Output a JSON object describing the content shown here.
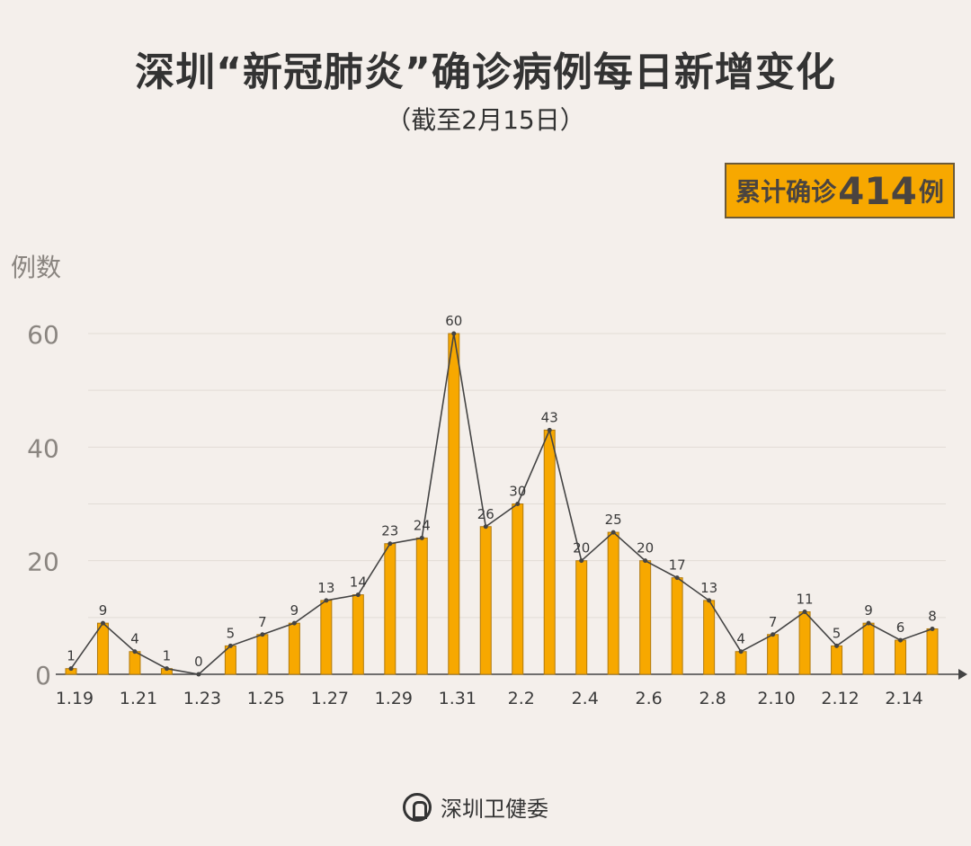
{
  "header": {
    "title": "深圳“新冠肺炎”确诊病例每日新增变化",
    "subtitle": "（截至2月15日）"
  },
  "total_badge": {
    "prefix": "累计确诊",
    "value": "414",
    "suffix": "例"
  },
  "footer": {
    "source": "深圳卫健委"
  },
  "colors": {
    "bar": "#f7a800",
    "bar_outline": "#b07a10",
    "line": "#444444",
    "grid": "#e2dcd6",
    "background": "#f4efeb"
  },
  "chart_data": {
    "type": "bar+line",
    "ylabel": "例数",
    "ylim": [
      0,
      60
    ],
    "yticks": [
      0,
      20,
      40,
      60
    ],
    "grid": true,
    "categories": [
      "1.19",
      "1.20",
      "1.21",
      "1.22",
      "1.23",
      "1.24",
      "1.25",
      "1.26",
      "1.27",
      "1.28",
      "1.29",
      "1.30",
      "1.31",
      "2.1",
      "2.2",
      "2.3",
      "2.4",
      "2.5",
      "2.6",
      "2.7",
      "2.8",
      "2.9",
      "2.10",
      "2.11",
      "2.12",
      "2.13",
      "2.14",
      "2.15"
    ],
    "xtick_labels": [
      "1.19",
      "1.21",
      "1.23",
      "1.25",
      "1.27",
      "1.29",
      "1.31",
      "2.2",
      "2.4",
      "2.6",
      "2.8",
      "2.10",
      "2.12",
      "2.14"
    ],
    "values": [
      1,
      9,
      4,
      1,
      0,
      5,
      7,
      9,
      13,
      14,
      23,
      24,
      60,
      26,
      30,
      43,
      20,
      25,
      20,
      17,
      13,
      4,
      7,
      11,
      5,
      9,
      6,
      8
    ]
  }
}
